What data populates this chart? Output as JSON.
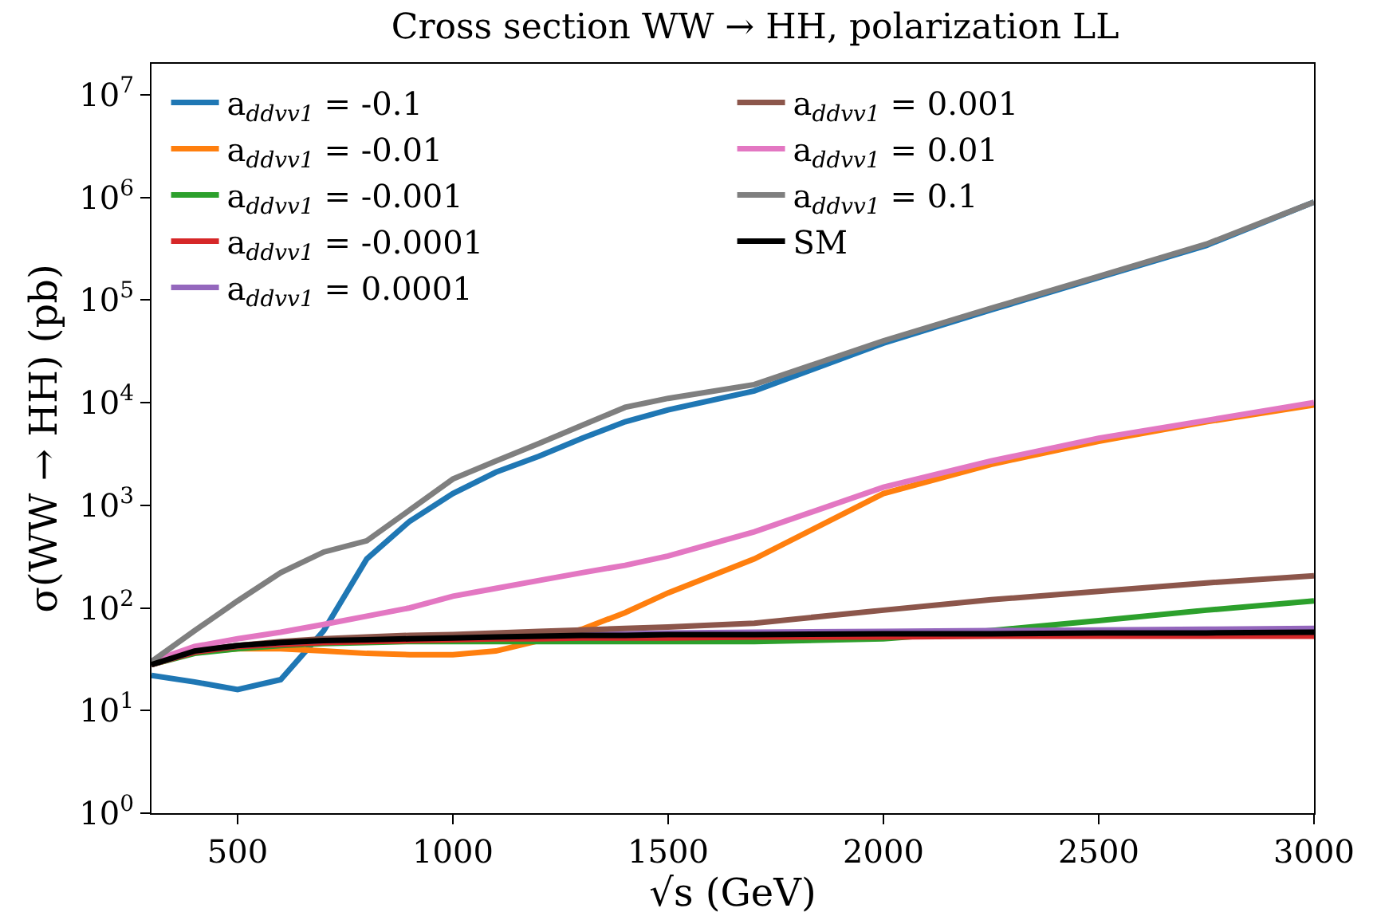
{
  "chart_data": {
    "type": "line",
    "title": "Cross section WW → HH, polarization LL",
    "xlabel": "√s (GeV)",
    "ylabel": "σ(WW → HH) (pb)",
    "x": [
      300,
      400,
      500,
      600,
      700,
      800,
      900,
      1000,
      1100,
      1200,
      1300,
      1400,
      1500,
      1700,
      2000,
      2250,
      2500,
      2750,
      3000
    ],
    "series": [
      {
        "name": "a$_{ddvv1}$ = -0.1",
        "color": "#1f77b4",
        "values": [
          22,
          19,
          16,
          20,
          60,
          300,
          700,
          1300,
          2100,
          3000,
          4500,
          6500,
          8500,
          13000,
          38000,
          80000,
          165000,
          340000,
          900000
        ]
      },
      {
        "name": "a$_{ddvv1}$ = -0.01",
        "color": "#ff7f0e",
        "values": [
          28,
          37,
          40,
          40,
          38,
          36,
          35,
          35,
          38,
          48,
          62,
          90,
          140,
          300,
          1300,
          2500,
          4200,
          6500,
          9500
        ]
      },
      {
        "name": "a$_{ddvv1}$ = -0.001",
        "color": "#2ca02c",
        "values": [
          28,
          36,
          40,
          43,
          45,
          46,
          47,
          47,
          47,
          47,
          47,
          47,
          47,
          47,
          50,
          60,
          75,
          95,
          117
        ]
      },
      {
        "name": "a$_{ddvv1}$ = -0.0001",
        "color": "#d62728",
        "values": [
          28,
          37,
          42,
          44,
          46,
          47,
          48,
          49,
          50,
          50,
          51,
          51,
          51,
          52,
          52,
          53,
          53,
          53,
          53
        ]
      },
      {
        "name": "a$_{ddvv1}$ = 0.0001",
        "color": "#9467bd",
        "values": [
          28,
          38,
          43,
          46,
          48,
          50,
          51,
          52,
          53,
          54,
          56,
          56,
          57,
          58,
          59,
          60,
          61,
          62,
          63
        ]
      },
      {
        "name": "a$_{ddvv1}$ = 0.001",
        "color": "#8c564b",
        "values": [
          28,
          38,
          43,
          47,
          50,
          52,
          54,
          55,
          57,
          59,
          61,
          63,
          65,
          71,
          95,
          120,
          145,
          175,
          205
        ]
      },
      {
        "name": "a$_{ddvv1}$ = 0.01",
        "color": "#e377c2",
        "values": [
          30,
          42,
          50,
          58,
          69,
          83,
          100,
          130,
          155,
          185,
          220,
          260,
          320,
          550,
          1500,
          2700,
          4500,
          6700,
          10000
        ]
      },
      {
        "name": "a$_{ddvv1}$ = 0.1",
        "color": "#7f7f7f",
        "values": [
          30,
          60,
          117,
          220,
          350,
          450,
          900,
          1800,
          2700,
          4000,
          6000,
          9000,
          11000,
          15000,
          40000,
          83000,
          170000,
          350000,
          900000
        ]
      },
      {
        "name": "SM",
        "color": "#000000",
        "values": [
          28,
          38,
          43,
          46,
          48,
          49,
          50,
          51,
          52,
          53,
          54,
          54,
          55,
          55,
          56,
          56,
          57,
          57,
          58
        ]
      }
    ],
    "log": "y",
    "xlim": [
      300,
      3000
    ],
    "xticks": [
      500,
      1000,
      1500,
      2000,
      2500,
      3000
    ],
    "ylim": [
      1,
      20000000
    ],
    "yticks": [
      {
        "value": 1,
        "label": "10$^{0}$"
      },
      {
        "value": 10,
        "label": "10$^{1}$"
      },
      {
        "value": 100,
        "label": "10$^{2}$"
      },
      {
        "value": 1000,
        "label": "10$^{3}$"
      },
      {
        "value": 10000,
        "label": "10$^{4}$"
      },
      {
        "value": 100000,
        "label": "10$^{5}$"
      },
      {
        "value": 1000000,
        "label": "10$^{6}$"
      },
      {
        "value": 10000000,
        "label": "10$^{7}$"
      }
    ],
    "grid": false,
    "legend": "top left",
    "marker": "none",
    "line_style": "solid"
  }
}
